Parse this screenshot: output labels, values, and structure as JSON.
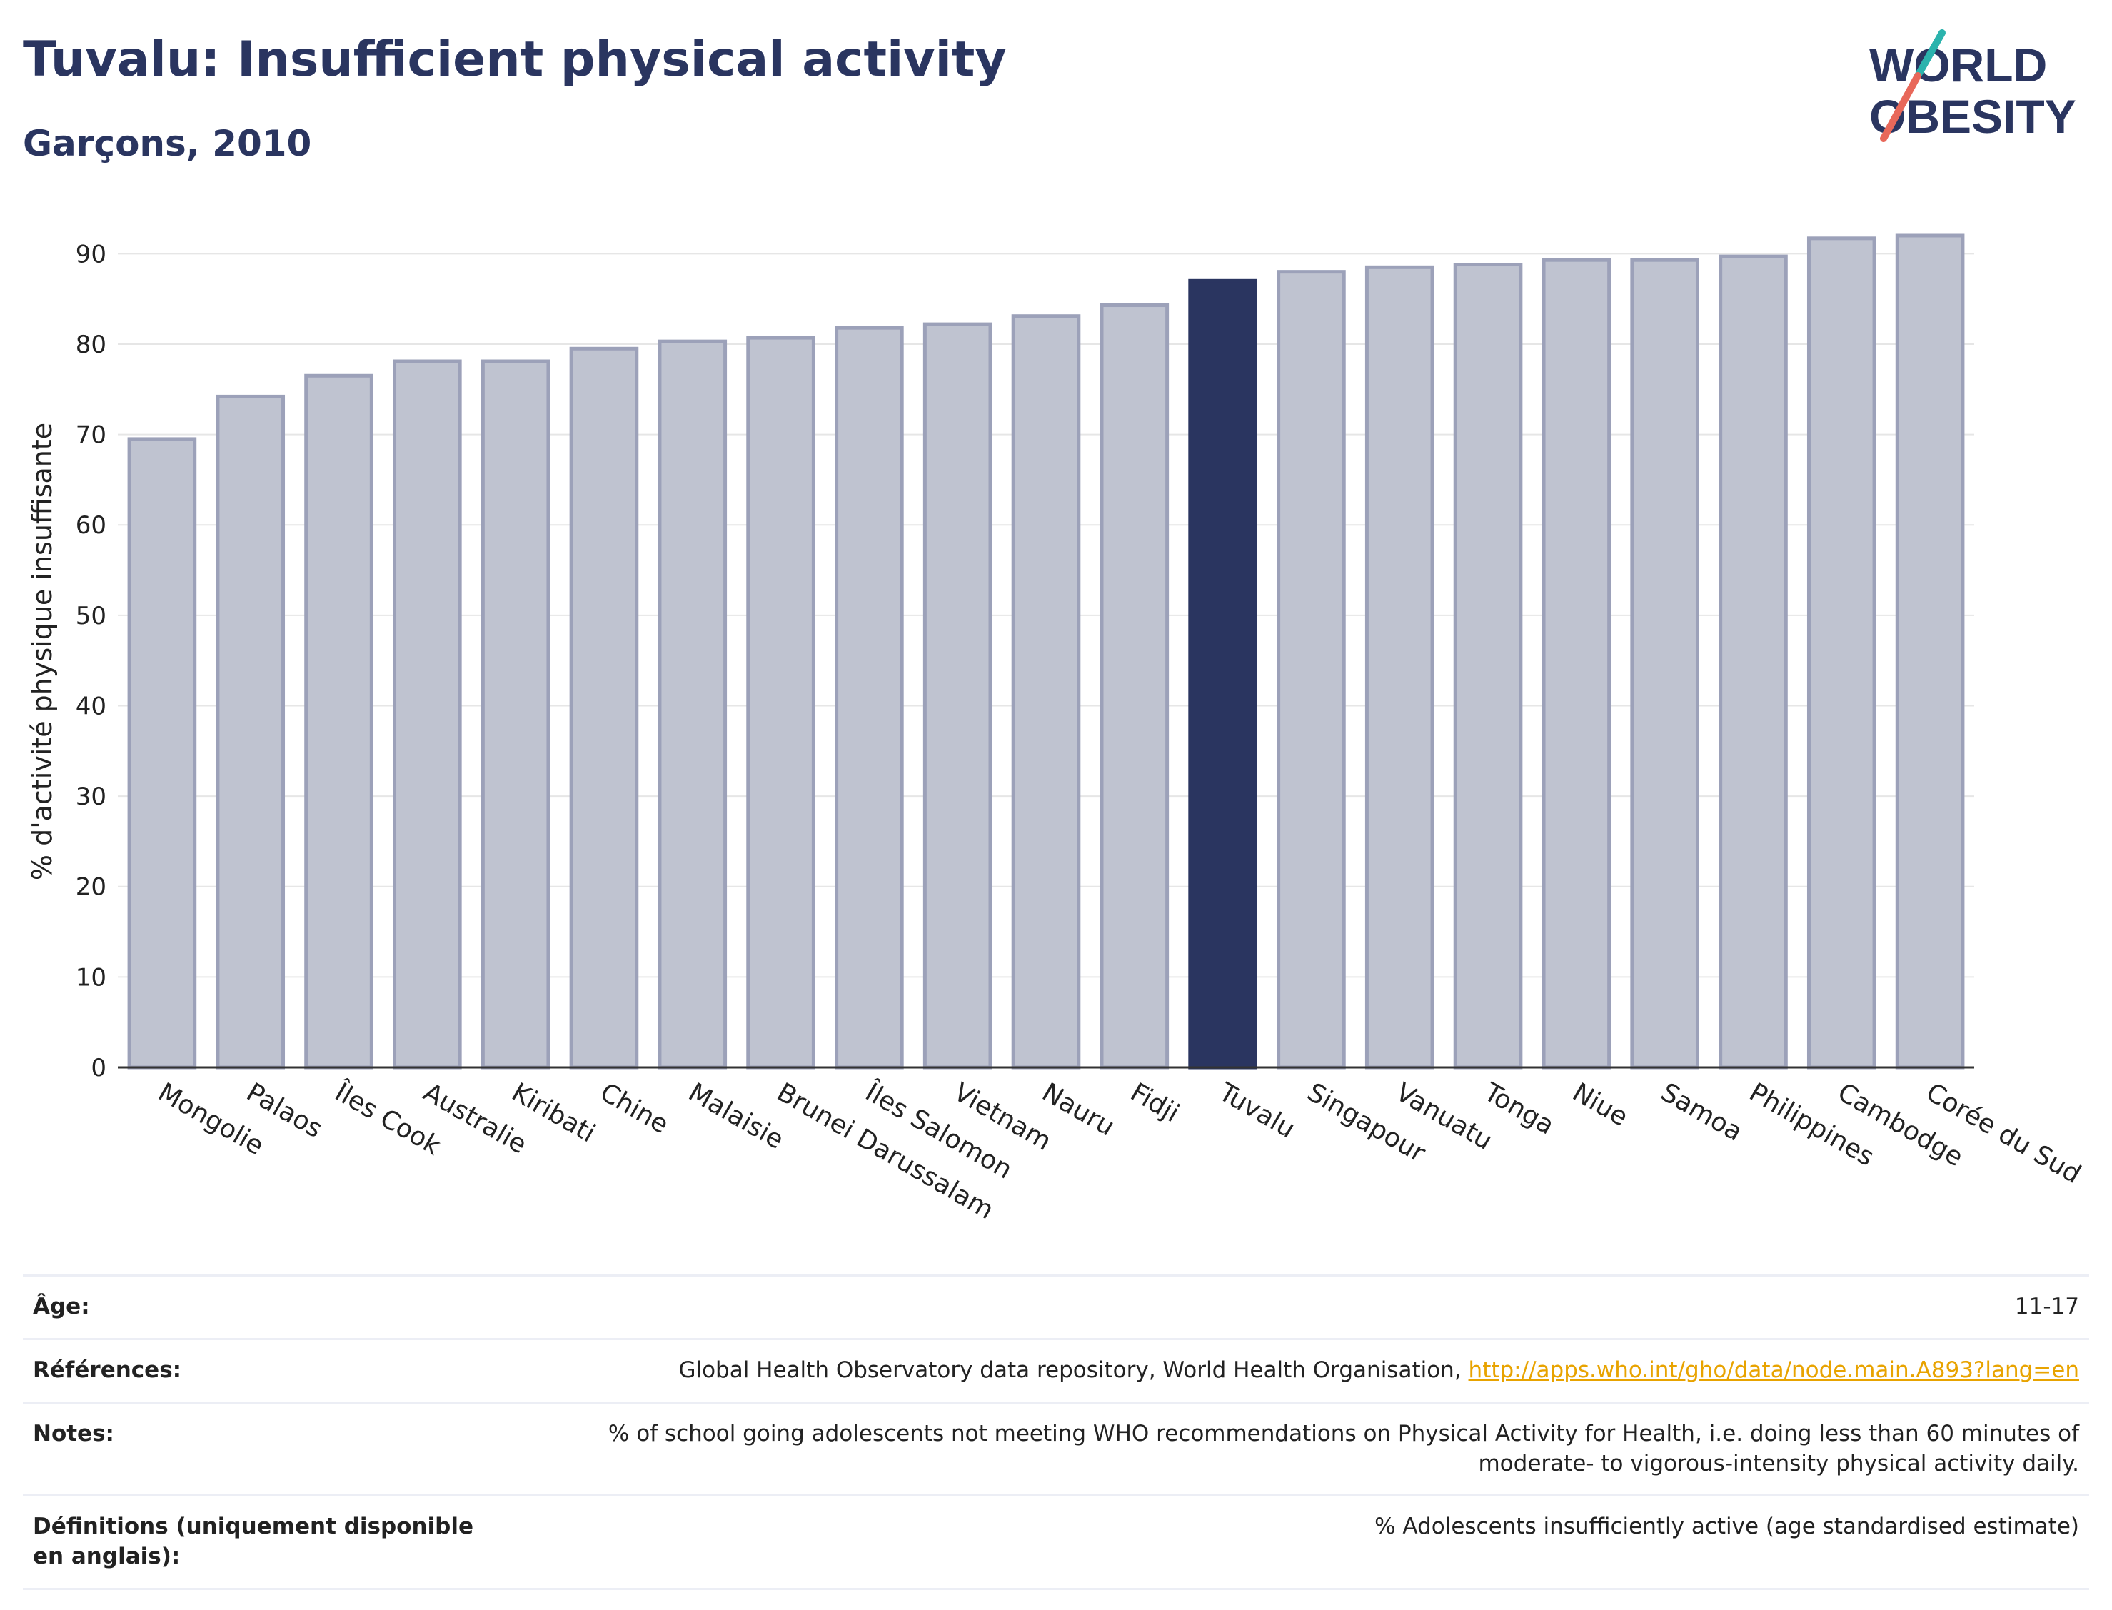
{
  "header": {
    "title": "Tuvalu: Insufficient physical activity",
    "subtitle": "Garçons, 2010"
  },
  "logo": {
    "line1": "WORLD",
    "line2": "OBESITY",
    "name": "world-obesity-logo"
  },
  "colors": {
    "bar_default": "#bfc3d0",
    "bar_default_stroke": "#9ca1b9",
    "bar_highlight": "#2a3560",
    "grid": "#e6e6e6",
    "link": "#e8a300"
  },
  "chart_data": {
    "type": "bar",
    "categories": [
      "Mongolie",
      "Palaos",
      "Îles Cook",
      "Australie",
      "Kiribati",
      "Chine",
      "Malaisie",
      "Brunei Darussalam",
      "Îles Salomon",
      "Vietnam",
      "Nauru",
      "Fidji",
      "Tuvalu",
      "Singapour",
      "Vanuatu",
      "Tonga",
      "Niue",
      "Samoa",
      "Philippines",
      "Cambodge",
      "Corée du Sud"
    ],
    "values": [
      69.5,
      74.2,
      76.5,
      78.1,
      78.1,
      79.5,
      80.3,
      80.7,
      81.8,
      82.2,
      83.1,
      84.3,
      87.0,
      88.0,
      88.5,
      88.8,
      89.3,
      89.3,
      89.7,
      91.7,
      92.0
    ],
    "highlight": "Tuvalu",
    "ylabel": "% d'activité physique insuffisante",
    "xlabel": "",
    "ylim": [
      0,
      92
    ],
    "yticks": [
      0,
      10,
      20,
      30,
      40,
      50,
      60,
      70,
      80,
      90
    ],
    "grid": true,
    "legend": "none"
  },
  "meta": {
    "age_label": "Âge:",
    "age_value": "11-17",
    "references_label": "Références:",
    "references_text": "Global Health Observatory data repository, World Health Organisation, ",
    "references_link": "http://apps.who.int/gho/data/node.main.A893?lang=en",
    "notes_label": "Notes:",
    "notes_value": "% of school going adolescents not meeting WHO recommendations on Physical Activity for Health, i.e. doing less than 60 minutes of moderate- to vigorous-intensity physical activity daily.",
    "definitions_label": "Définitions (uniquement disponible en anglais):",
    "definitions_value": "% Adolescents insufficiently active (age standardised estimate)"
  }
}
